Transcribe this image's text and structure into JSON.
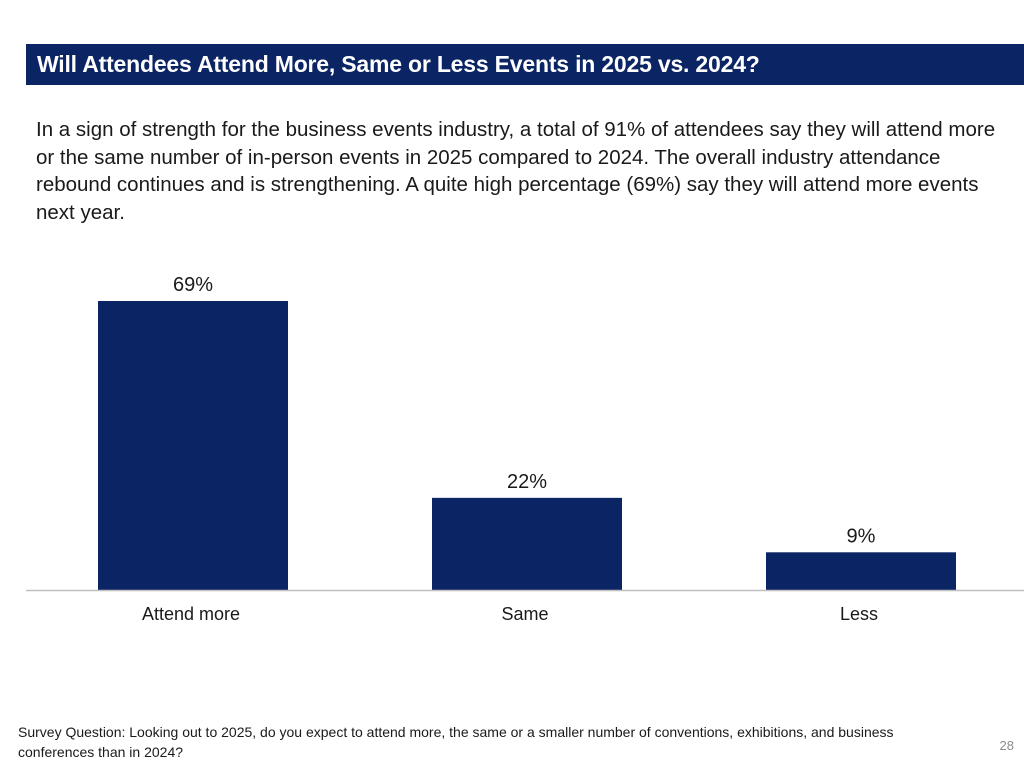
{
  "slide": {
    "title": "Will Attendees Attend More, Same or Less Events in 2025 vs. 2024?",
    "intro": "In a sign of strength for the business events industry, a total of 91% of attendees say they will attend more or the same number of in-person events in 2025 compared to 2024. The overall industry attendance rebound continues and is strengthening. A quite high percentage (69%) say they will attend more events next year.",
    "footnote": "Survey Question: Looking out to 2025, do you expect to attend more, the same or a smaller number of conventions, exhibitions, and business conferences than in 2024?",
    "page_number": "28"
  },
  "colors": {
    "title_bg": "#0b2463",
    "bar": "#0b2463",
    "axis": "#bfbfbf"
  },
  "chart_data": {
    "type": "bar",
    "title": "",
    "xlabel": "",
    "ylabel": "",
    "categories": [
      "Attend more",
      "Same",
      "Less"
    ],
    "values": [
      69,
      22,
      9
    ],
    "data_labels": [
      "69%",
      "22%",
      "9%"
    ],
    "unit": "%",
    "ylim": [
      0,
      69
    ],
    "grid": false,
    "legend": "none"
  }
}
